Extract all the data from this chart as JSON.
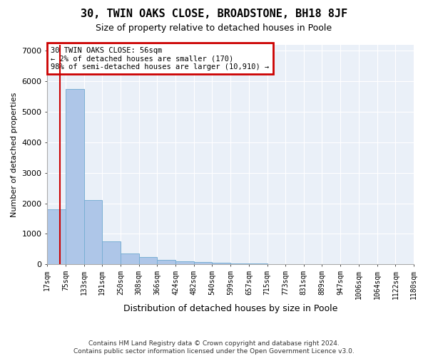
{
  "title": "30, TWIN OAKS CLOSE, BROADSTONE, BH18 8JF",
  "subtitle": "Size of property relative to detached houses in Poole",
  "xlabel": "Distribution of detached houses by size in Poole",
  "ylabel": "Number of detached properties",
  "footer_line1": "Contains HM Land Registry data © Crown copyright and database right 2024.",
  "footer_line2": "Contains public sector information licensed under the Open Government Licence v3.0.",
  "annotation_title": "30 TWIN OAKS CLOSE: 56sqm",
  "annotation_line1": "← 2% of detached houses are smaller (170)",
  "annotation_line2": "98% of semi-detached houses are larger (10,910) →",
  "property_size_sqm": 56,
  "bar_edges": [
    17,
    75,
    133,
    191,
    250,
    308,
    366,
    424,
    482,
    540,
    599,
    657,
    715,
    773,
    831,
    889,
    947,
    1006,
    1064,
    1122,
    1180
  ],
  "bar_heights": [
    1800,
    5750,
    2100,
    750,
    350,
    230,
    150,
    100,
    80,
    50,
    30,
    20,
    10,
    8,
    5,
    4,
    3,
    2,
    2,
    2
  ],
  "bar_color": "#aec6e8",
  "bar_edge_color": "#7aafd4",
  "red_line_x": 56,
  "annotation_box_color": "#ffffff",
  "annotation_box_edge": "#cc0000",
  "background_color": "#ffffff",
  "plot_bg_color": "#eaf0f8",
  "grid_color": "#ffffff",
  "ylim": [
    0,
    7200
  ],
  "yticks": [
    0,
    1000,
    2000,
    3000,
    4000,
    5000,
    6000,
    7000
  ]
}
